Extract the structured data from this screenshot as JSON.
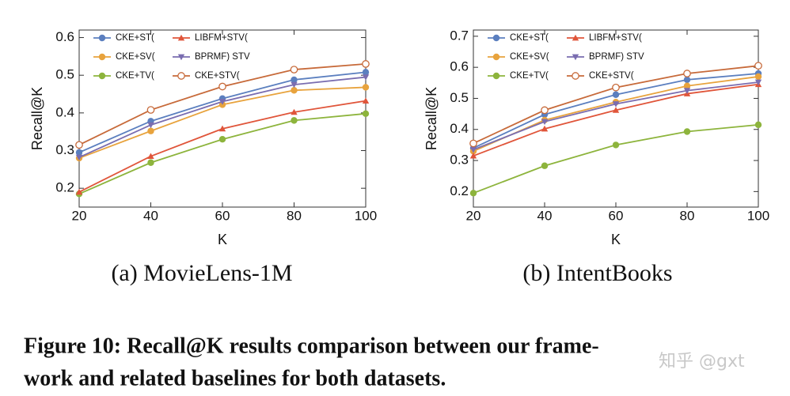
{
  "chart_data": [
    {
      "type": "line",
      "caption": "(a) MovieLens-1M",
      "xlabel": "K",
      "ylabel": "Recall@K",
      "x": [
        20,
        40,
        60,
        80,
        100
      ],
      "xlim": [
        20,
        100
      ],
      "xticks": [
        20,
        40,
        60,
        80,
        100
      ],
      "ylim": [
        0.15,
        0.62
      ],
      "yticks": [
        0.2,
        0.3,
        0.4,
        0.5,
        0.6
      ],
      "legend": "upper left",
      "series": [
        {
          "name": "CKE+ST(",
          "color": "#5b7fbf",
          "marker": "circle",
          "values": [
            0.295,
            0.378,
            0.438,
            0.488,
            0.508
          ]
        },
        {
          "name": "CKE+SV(",
          "color": "#e8a33d",
          "marker": "circle",
          "values": [
            0.28,
            0.352,
            0.422,
            0.46,
            0.468
          ]
        },
        {
          "name": "CKE+TV(",
          "color": "#8db43c",
          "marker": "circle",
          "values": [
            0.185,
            0.268,
            0.33,
            0.38,
            0.398
          ]
        },
        {
          "name": "LIBFM+STV(",
          "color": "#e0553a",
          "marker": "triangle",
          "values": [
            0.19,
            0.285,
            0.358,
            0.402,
            0.432
          ]
        },
        {
          "name": "BPRMF) STV",
          "color": "#7a6db0",
          "marker": "triangle-down",
          "values": [
            0.282,
            0.368,
            0.43,
            0.475,
            0.495
          ]
        },
        {
          "name": "CKE+STV(",
          "color": "#c76a3a",
          "marker": "open-circle",
          "values": [
            0.315,
            0.408,
            0.47,
            0.515,
            0.53
          ]
        }
      ]
    },
    {
      "type": "line",
      "caption": "(b) IntentBooks",
      "xlabel": "K",
      "ylabel": "Recall@K",
      "x": [
        20,
        40,
        60,
        80,
        100
      ],
      "xlim": [
        20,
        100
      ],
      "xticks": [
        20,
        40,
        60,
        80,
        100
      ],
      "ylim": [
        0.15,
        0.72
      ],
      "yticks": [
        0.2,
        0.3,
        0.4,
        0.5,
        0.6,
        0.7
      ],
      "legend": "upper left",
      "series": [
        {
          "name": "CKE+ST(",
          "color": "#5b7fbf",
          "marker": "circle",
          "values": [
            0.34,
            0.448,
            0.512,
            0.56,
            0.58
          ]
        },
        {
          "name": "CKE+SV(",
          "color": "#e8a33d",
          "marker": "circle",
          "values": [
            0.33,
            0.43,
            0.488,
            0.54,
            0.57
          ]
        },
        {
          "name": "CKE+TV(",
          "color": "#8db43c",
          "marker": "circle",
          "values": [
            0.195,
            0.283,
            0.35,
            0.393,
            0.415
          ]
        },
        {
          "name": "LIBFM+STV(",
          "color": "#e0553a",
          "marker": "triangle",
          "values": [
            0.315,
            0.402,
            0.462,
            0.515,
            0.545
          ]
        },
        {
          "name": "BPRMF) STV",
          "color": "#7a6db0",
          "marker": "triangle-down",
          "values": [
            0.335,
            0.425,
            0.482,
            0.525,
            0.552
          ]
        },
        {
          "name": "CKE+STV(",
          "color": "#c76a3a",
          "marker": "open-circle",
          "values": [
            0.355,
            0.462,
            0.535,
            0.58,
            0.605
          ]
        }
      ]
    }
  ],
  "figure_caption": [
    "Figure 10: Recall@K results comparison between our frame-",
    "work and related baselines for both datasets."
  ],
  "watermark": "知乎 @gxt"
}
